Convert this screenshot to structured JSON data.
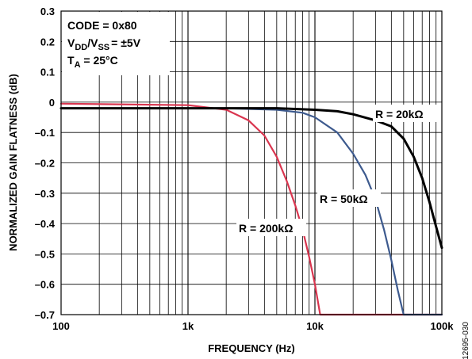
{
  "chart_data": {
    "type": "line",
    "xlabel": "FREQUENCY (Hz)",
    "ylabel": "NORMALIZED GAIN FLATNESS (dB)",
    "x_scale": "log",
    "xlim": [
      100,
      100000
    ],
    "ylim": [
      -0.7,
      0.3
    ],
    "x_ticks": [
      "100",
      "1k",
      "10k",
      "100k"
    ],
    "y_ticks": [
      "0.3",
      "0.2",
      "0.1",
      "0",
      "–0.1",
      "–0.2",
      "–0.3",
      "–0.4",
      "–0.5",
      "–0.6",
      "–0.7"
    ],
    "grid": true,
    "conditions": {
      "code": "CODE = 0x80",
      "supply_main": "V",
      "supply_sub1": "DD",
      "supply_mid": "/V",
      "supply_sub2": "SS",
      "supply_tail": "= ±5V",
      "temp_main": "T",
      "temp_sub": "A",
      "temp_tail": " = 25°C"
    },
    "series": [
      {
        "name": "R = 20kΩ",
        "color": "#000000",
        "x": [
          100,
          1000,
          2000,
          5000,
          10000,
          15000,
          20000,
          30000,
          40000,
          50000,
          60000,
          70000,
          80000,
          90000,
          100000
        ],
        "y": [
          -0.02,
          -0.02,
          -0.02,
          -0.02,
          -0.025,
          -0.03,
          -0.04,
          -0.06,
          -0.08,
          -0.12,
          -0.18,
          -0.25,
          -0.33,
          -0.41,
          -0.48
        ]
      },
      {
        "name": "R = 50kΩ",
        "color": "#3d5a8e",
        "x": [
          100,
          1000,
          2000,
          5000,
          8000,
          10000,
          15000,
          20000,
          25000,
          30000,
          35000,
          40000,
          45000,
          50000,
          100000
        ],
        "y": [
          -0.02,
          -0.02,
          -0.02,
          -0.025,
          -0.035,
          -0.05,
          -0.1,
          -0.17,
          -0.24,
          -0.32,
          -0.42,
          -0.52,
          -0.62,
          -0.7,
          -0.7
        ]
      },
      {
        "name": "R = 200kΩ",
        "color": "#d9354f",
        "x": [
          100,
          1000,
          2000,
          3000,
          4000,
          5000,
          6000,
          7000,
          8000,
          9000,
          10000,
          11000,
          20000,
          50000,
          100000
        ],
        "y": [
          -0.005,
          -0.01,
          -0.025,
          -0.06,
          -0.11,
          -0.18,
          -0.26,
          -0.34,
          -0.42,
          -0.51,
          -0.6,
          -0.7,
          -0.7,
          -0.7,
          -0.7
        ]
      }
    ],
    "labels": [
      {
        "text": "R = 20kΩ",
        "series": 0
      },
      {
        "text": "R = 50kΩ",
        "series": 1
      },
      {
        "text": "R = 200kΩ",
        "series": 2
      }
    ],
    "figure_id": "12695-030"
  }
}
